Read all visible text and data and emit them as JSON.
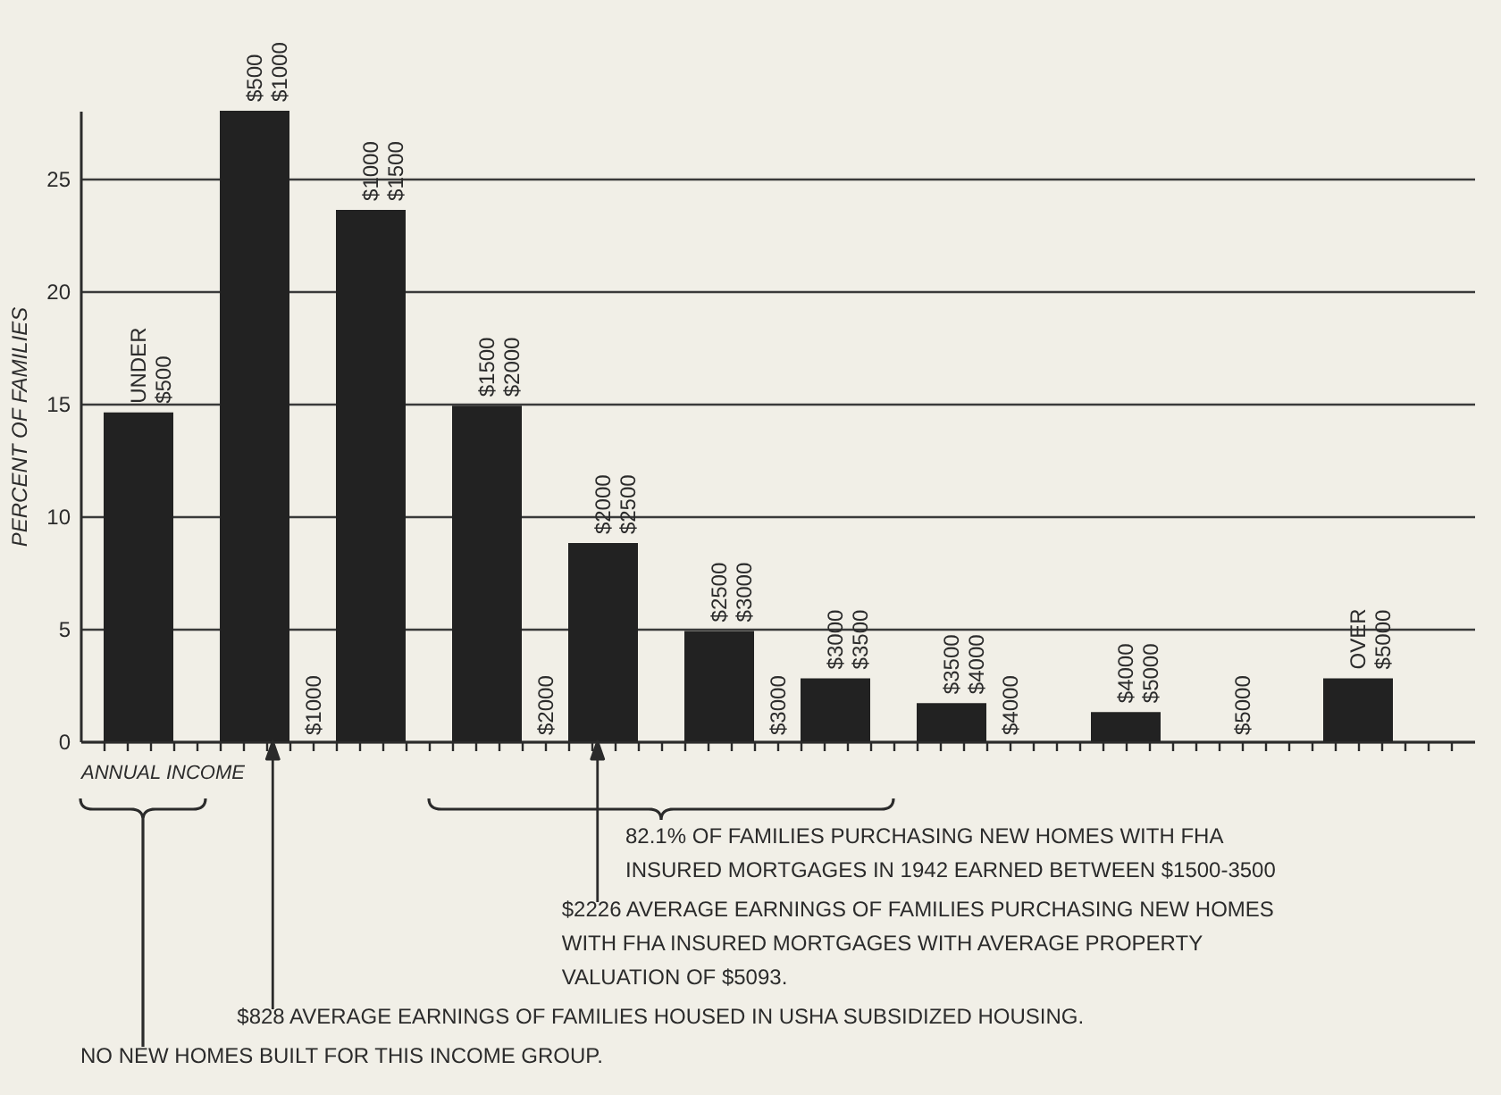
{
  "chart_data": {
    "type": "bar",
    "xlabel": "ANNUAL INCOME",
    "ylabel": "PERCENT OF FAMILIES",
    "x": [
      250,
      750,
      1250,
      1750,
      2250,
      2750,
      3250,
      3750,
      4500,
      5500
    ],
    "values": [
      14.6,
      28,
      23.6,
      14.9,
      8.8,
      4.9,
      2.8,
      1.7,
      1.3,
      2.8
    ],
    "color": "#222222",
    "xlim": [
      0,
      6000
    ],
    "xticks": [
      {
        "value": 100,
        "label": null
      },
      {
        "value": 200,
        "label": null
      },
      {
        "value": 300,
        "label": null
      },
      {
        "value": 400,
        "label": null
      },
      {
        "value": 500,
        "label": null
      },
      {
        "value": 600,
        "label": null
      },
      {
        "value": 700,
        "label": null
      },
      {
        "value": 800,
        "label": null
      },
      {
        "value": 900,
        "label": null
      },
      {
        "value": 1000,
        "label": "$1000"
      },
      {
        "value": 1100,
        "label": null
      },
      {
        "value": 1200,
        "label": null
      },
      {
        "value": 1300,
        "label": null
      },
      {
        "value": 1400,
        "label": null
      },
      {
        "value": 1500,
        "label": null
      },
      {
        "value": 1600,
        "label": null
      },
      {
        "value": 1700,
        "label": null
      },
      {
        "value": 1800,
        "label": null
      },
      {
        "value": 1900,
        "label": null
      },
      {
        "value": 2000,
        "label": "$2000"
      },
      {
        "value": 2100,
        "label": null
      },
      {
        "value": 2200,
        "label": null
      },
      {
        "value": 2300,
        "label": null
      },
      {
        "value": 2400,
        "label": null
      },
      {
        "value": 2500,
        "label": null
      },
      {
        "value": 2600,
        "label": null
      },
      {
        "value": 2700,
        "label": null
      },
      {
        "value": 2800,
        "label": null
      },
      {
        "value": 2900,
        "label": null
      },
      {
        "value": 3000,
        "label": "$3000"
      },
      {
        "value": 3100,
        "label": null
      },
      {
        "value": 3200,
        "label": null
      },
      {
        "value": 3300,
        "label": null
      },
      {
        "value": 3400,
        "label": null
      },
      {
        "value": 3500,
        "label": null
      },
      {
        "value": 3600,
        "label": null
      },
      {
        "value": 3700,
        "label": null
      },
      {
        "value": 3800,
        "label": null
      },
      {
        "value": 3900,
        "label": null
      },
      {
        "value": 4000,
        "label": "$4000"
      },
      {
        "value": 4100,
        "label": null
      },
      {
        "value": 4200,
        "label": null
      },
      {
        "value": 4300,
        "label": null
      },
      {
        "value": 4400,
        "label": null
      },
      {
        "value": 4500,
        "label": null
      },
      {
        "value": 4600,
        "label": null
      },
      {
        "value": 4700,
        "label": null
      },
      {
        "value": 4800,
        "label": null
      },
      {
        "value": 4900,
        "label": null
      },
      {
        "value": 5000,
        "label": "$5000"
      },
      {
        "value": 5100,
        "label": null
      },
      {
        "value": 5200,
        "label": null
      },
      {
        "value": 5300,
        "label": null
      },
      {
        "value": 5400,
        "label": null
      },
      {
        "value": 5500,
        "label": null
      },
      {
        "value": 5600,
        "label": null
      },
      {
        "value": 5700,
        "label": null
      },
      {
        "value": 5800,
        "label": null
      },
      {
        "value": 5900,
        "label": null
      }
    ],
    "ylim": [
      0,
      28
    ],
    "yticks": [
      0,
      5,
      10,
      15,
      20,
      25
    ],
    "grid": "y",
    "annotations": [
      {
        "text": "UNDER\n$500",
        "x": 250,
        "y": 14.6
      },
      {
        "text": "$500\n$1000",
        "x": 750,
        "y": 28
      },
      {
        "text": "$1000\n$1500",
        "x": 1250,
        "y": 23.6
      },
      {
        "text": "$1500\n$2000",
        "x": 1750,
        "y": 14.9
      },
      {
        "text": "$2000\n$2500",
        "x": 2250,
        "y": 8.8
      },
      {
        "text": "$2500\n$3000",
        "x": 2750,
        "y": 4.9
      },
      {
        "text": "$3000\n$3500",
        "x": 3250,
        "y": 2.8
      },
      {
        "text": "$3500\n$4000",
        "x": 3750,
        "y": 1.7
      },
      {
        "text": "$4000\n$5000",
        "x": 4500,
        "y": 1.3
      },
      {
        "text": "OVER\n$5000",
        "x": 5500,
        "y": 2.8
      },
      "82.1% OF FAMILIES PURCHASING NEW HOMES WITH FHA\nINSURED MORTGAGES IN 1942 EARNED BETWEEN $1500-3500",
      {
        "text": "$2226 AVERAGE EARNINGS OF FAMILIES PURCHASING NEW HOMES\nWITH FHA INSURED MORTGAGES WITH AVERAGE PROPERTY\nVALUATION OF $5093.",
        "x": 2226,
        "y": 0
      },
      {
        "text": "$828 AVERAGE EARNINGS OF FAMILIES HOUSED IN USHA SUBSIDIZED HOUSING.",
        "x": 828,
        "y": 0
      },
      "NO NEW HOMES BUILT FOR THIS INCOME GROUP."
    ]
  }
}
